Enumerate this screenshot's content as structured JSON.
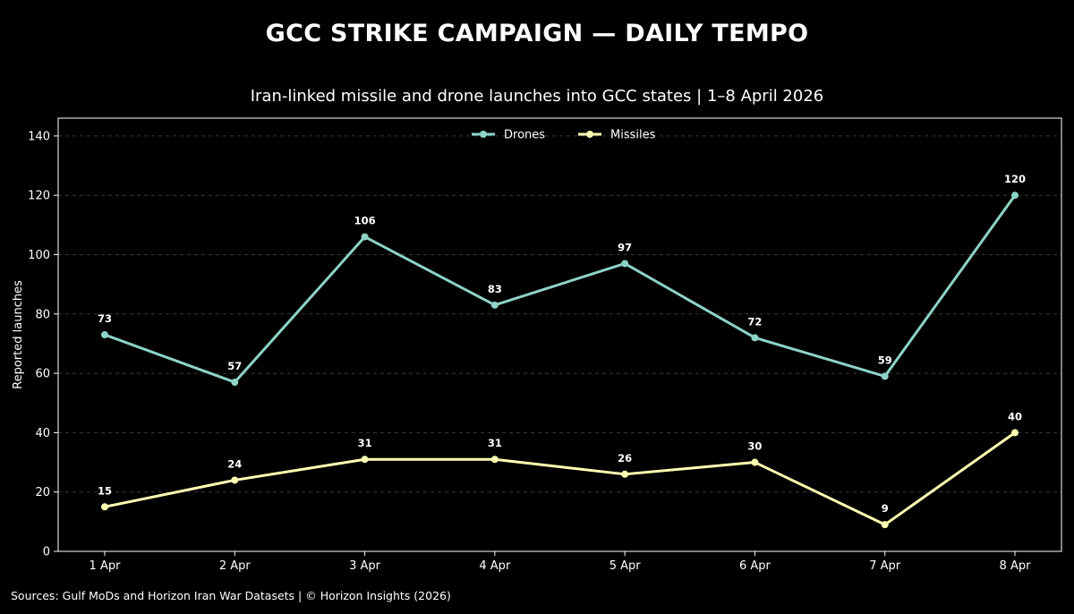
{
  "title": "GCC STRIKE CAMPAIGN — DAILY TEMPO",
  "subtitle": "Iran-linked missile and drone launches into GCC states | 1–8 April 2026",
  "footer": "Sources: Gulf MoDs and Horizon Iran War Datasets | © Horizon Insights (2026)",
  "chart_data": {
    "type": "line",
    "title": "GCC STRIKE CAMPAIGN — DAILY TEMPO",
    "subtitle": "Iran-linked missile and drone launches into GCC states | 1–8 April 2026",
    "categories": [
      "1 Apr",
      "2 Apr",
      "3 Apr",
      "4 Apr",
      "5 Apr",
      "6 Apr",
      "7 Apr",
      "8 Apr"
    ],
    "xlabel": "",
    "ylabel": "Reported launches",
    "ylim": [
      0,
      146
    ],
    "yticks": [
      0,
      20,
      40,
      60,
      80,
      100,
      120,
      140
    ],
    "grid": "horizontal dashed",
    "legend": "top-center",
    "series": [
      {
        "name": "Drones",
        "color": "#8dd3c7",
        "values": [
          73,
          57,
          106,
          83,
          97,
          72,
          59,
          120
        ]
      },
      {
        "name": "Missiles",
        "color": "#ffffb3",
        "values": [
          15,
          24,
          31,
          31,
          26,
          30,
          9,
          40
        ]
      }
    ]
  }
}
